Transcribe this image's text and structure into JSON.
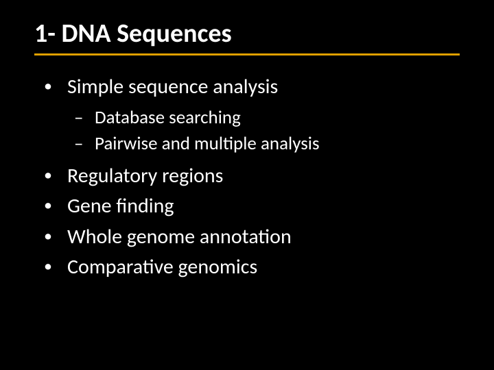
{
  "slide": {
    "title": "1- DNA Sequences",
    "title_color": "#ffffff",
    "underline_color": "#e0a000",
    "background_color": "#000000",
    "text_color": "#ffffff",
    "title_fontsize": 38,
    "body_fontsize": 30,
    "sub_fontsize": 27,
    "bullet_char": "•",
    "dash_char": "–",
    "items": [
      {
        "text": "Simple sequence analysis",
        "sub": [
          {
            "text": "Database searching"
          },
          {
            "text": "Pairwise and multiple analysis"
          }
        ]
      },
      {
        "text": "Regulatory regions"
      },
      {
        "text": "Gene finding"
      },
      {
        "text": "Whole genome annotation"
      },
      {
        "text": "Comparative genomics"
      }
    ]
  }
}
